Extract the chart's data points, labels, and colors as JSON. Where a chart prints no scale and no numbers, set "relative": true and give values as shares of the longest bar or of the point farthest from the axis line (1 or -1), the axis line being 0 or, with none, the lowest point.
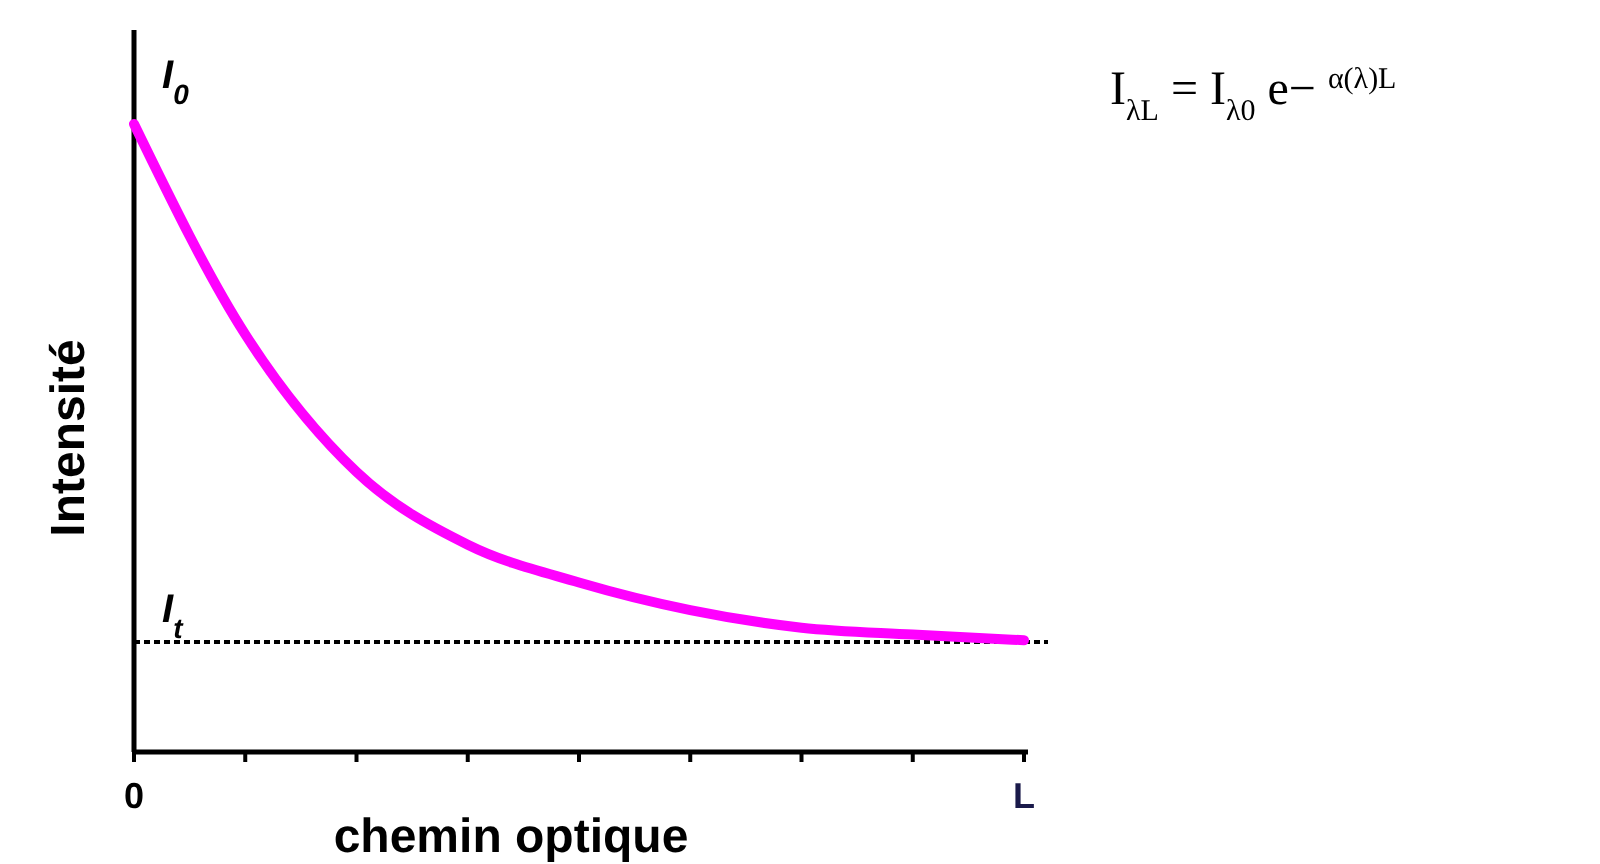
{
  "chart_data": {
    "type": "line",
    "relative": true,
    "xlabel": "chemin optique",
    "ylabel": "Intensité",
    "categories": [
      "0",
      null,
      null,
      null,
      null,
      null,
      null,
      null,
      "L"
    ],
    "series": [
      {
        "color": "#ff00ff",
        "values": [
          1.0,
          0.665,
          0.446,
          0.33,
          0.27,
          0.226,
          0.198,
          0.187,
          0.178
        ]
      }
    ],
    "ref_lines": [
      {
        "axis": "y",
        "value": 0.175,
        "label": "I$_{t}$",
        "line_style": "dotted",
        "color": "#000000"
      }
    ],
    "annotations": [
      {
        "text": "I$_{0}$",
        "x": "0",
        "y": 1
      },
      "I$_{λL}$ = I$_{λ0}$ e− $^{α(λ)L}$"
    ],
    "line_style": "solid"
  }
}
